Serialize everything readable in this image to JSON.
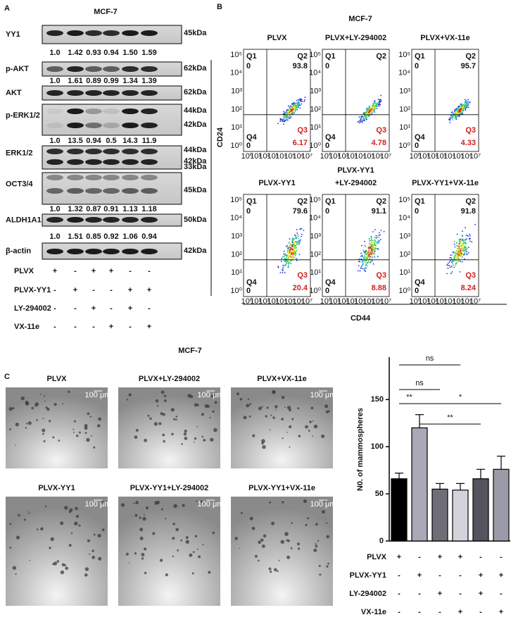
{
  "panel_a": {
    "label": "A",
    "title": "MCF-7",
    "blots": [
      {
        "name": "YY1",
        "sizes": [
          "45kDa"
        ],
        "ratios": [
          "1.0",
          "1.42",
          "0.93",
          "0.94",
          "1.50",
          "1.59"
        ]
      },
      {
        "name": "p-AKT",
        "sizes": [
          "62kDa"
        ],
        "ratios": [
          "1.0",
          "1.61",
          "0.89",
          "0.99",
          "1.34",
          "1.39"
        ]
      },
      {
        "name": "AKT",
        "sizes": [
          "62kDa"
        ]
      },
      {
        "name": "p-ERK1/2",
        "sizes": [
          "44kDa",
          "42kDa"
        ],
        "ratios": [
          "1.0",
          "13.5",
          "0.94",
          "0.5",
          "14.3",
          "11.9"
        ]
      },
      {
        "name": "ERK1/2",
        "sizes": [
          "44kDa",
          "42kDa"
        ]
      },
      {
        "name": "OCT3/4",
        "sizes": [
          "33kDa",
          "45kDa"
        ],
        "ratios": [
          "1.0",
          "1.32",
          "0.87",
          "0.91",
          "1.13",
          "1.18"
        ]
      },
      {
        "name": "ALDH1A1",
        "sizes": [
          "50kDa"
        ],
        "ratios": [
          "1.0",
          "1.51",
          "0.85",
          "0.92",
          "1.06",
          "0.94"
        ]
      },
      {
        "name": "β-actin",
        "sizes": [
          "42kDa"
        ]
      }
    ],
    "treatments": [
      {
        "name": "PLVX",
        "signs": [
          "+",
          "-",
          "+",
          "+",
          "-",
          "-"
        ]
      },
      {
        "name": "PLVX-YY1",
        "signs": [
          "-",
          "+",
          "-",
          "-",
          "+",
          "+"
        ]
      },
      {
        "name": "LY-294002",
        "signs": [
          "-",
          "-",
          "+",
          "-",
          "+",
          "-"
        ]
      },
      {
        "name": "VX-11e",
        "signs": [
          "-",
          "-",
          "-",
          "+",
          "-",
          "+"
        ]
      }
    ]
  },
  "panel_b": {
    "label": "B",
    "title": "MCF-7",
    "y_label": "CD24",
    "x_label": "CD44",
    "axis_ticks_x": [
      "10⁰",
      "10¹",
      "10²",
      "10³",
      "10⁴",
      "10⁵",
      "10⁶",
      "10⁷"
    ],
    "axis_ticks_y": [
      "10⁰",
      "10¹",
      "10²",
      "10³",
      "10⁴",
      "10⁵"
    ],
    "plots": [
      {
        "title": [
          "PLVX"
        ],
        "q1": "Q1",
        "q1_value": "0",
        "q2": "Q2",
        "q2_value": "93.8",
        "q3": "Q3",
        "q3_value": "6.17",
        "q4": "Q4",
        "q4_value": "0"
      },
      {
        "title": [
          "PLVX+LY-294002"
        ],
        "q1": "Q1",
        "q1_value": "0",
        "q2": "Q2",
        "q2_value": null,
        "q3": "Q3",
        "q3_value": "4.78",
        "q4": "Q4",
        "q4_value": "0"
      },
      {
        "title": [
          "PLVX+VX-11e"
        ],
        "q1": "Q1",
        "q1_value": "0",
        "q2": "Q2",
        "q2_value": "95.7",
        "q3": "Q3",
        "q3_value": "4.33",
        "q4": "Q4",
        "q4_value": "0"
      },
      {
        "title": [
          "PLVX-YY1"
        ],
        "q1": "Q1",
        "q1_value": "0",
        "q2": "Q2",
        "q2_value": "79.6",
        "q3": "Q3",
        "q3_value": "20.4",
        "q4": "Q4",
        "q4_value": "0"
      },
      {
        "title": [
          "PLVX-YY1",
          "+LY-294002"
        ],
        "q1": "Q1",
        "q1_value": "0",
        "q2": "Q2",
        "q2_value": "91.1",
        "q3": "Q3",
        "q3_value": "8.88",
        "q4": "Q4",
        "q4_value": "0"
      },
      {
        "title": [
          "PLVX-YY1+VX-11e"
        ],
        "q1": "Q1",
        "q1_value": "0",
        "q2": "Q2",
        "q2_value": "91.8",
        "q3": "Q3",
        "q3_value": "8.24",
        "q4": "Q4",
        "q4_value": "0"
      }
    ]
  },
  "panel_c": {
    "label": "C",
    "title": "MCF-7",
    "scale_bar": "100 μm",
    "images": [
      "PLVX",
      "PLVX+LY-294002",
      "PLVX+VX-11e",
      "PLVX-YY1",
      "PLVX-YY1+LY-294002",
      "PLVX-YY1+VX-11e"
    ],
    "treatments": [
      {
        "name": "PLVX",
        "signs": [
          "+",
          "-",
          "+",
          "+",
          "-",
          "-"
        ]
      },
      {
        "name": "PLVX-YY1",
        "signs": [
          "-",
          "+",
          "-",
          "-",
          "+",
          "+"
        ]
      },
      {
        "name": "LY-294002",
        "signs": [
          "-",
          "-",
          "+",
          "-",
          "+",
          "-"
        ]
      },
      {
        "name": "VX-11e",
        "signs": [
          "-",
          "-",
          "-",
          "+",
          "-",
          "+"
        ]
      }
    ]
  },
  "chart_data": {
    "type": "bar",
    "y_label": "N0. of mammospheres",
    "categories": [
      null,
      null,
      null,
      null,
      null,
      null
    ],
    "values": [
      66,
      120,
      55,
      54,
      66,
      76
    ],
    "errors": [
      6,
      14,
      6,
      7,
      10,
      14
    ],
    "colors": [
      "#000000",
      "#a9a8b6",
      "#6f6e78",
      "#d4d3db",
      "#55545e",
      "#9b9aa8"
    ],
    "ylim": [
      0,
      195
    ],
    "yticks": [
      0,
      50,
      100,
      150
    ],
    "annotations": [
      "ns",
      "ns",
      "**",
      "*",
      "**"
    ]
  }
}
